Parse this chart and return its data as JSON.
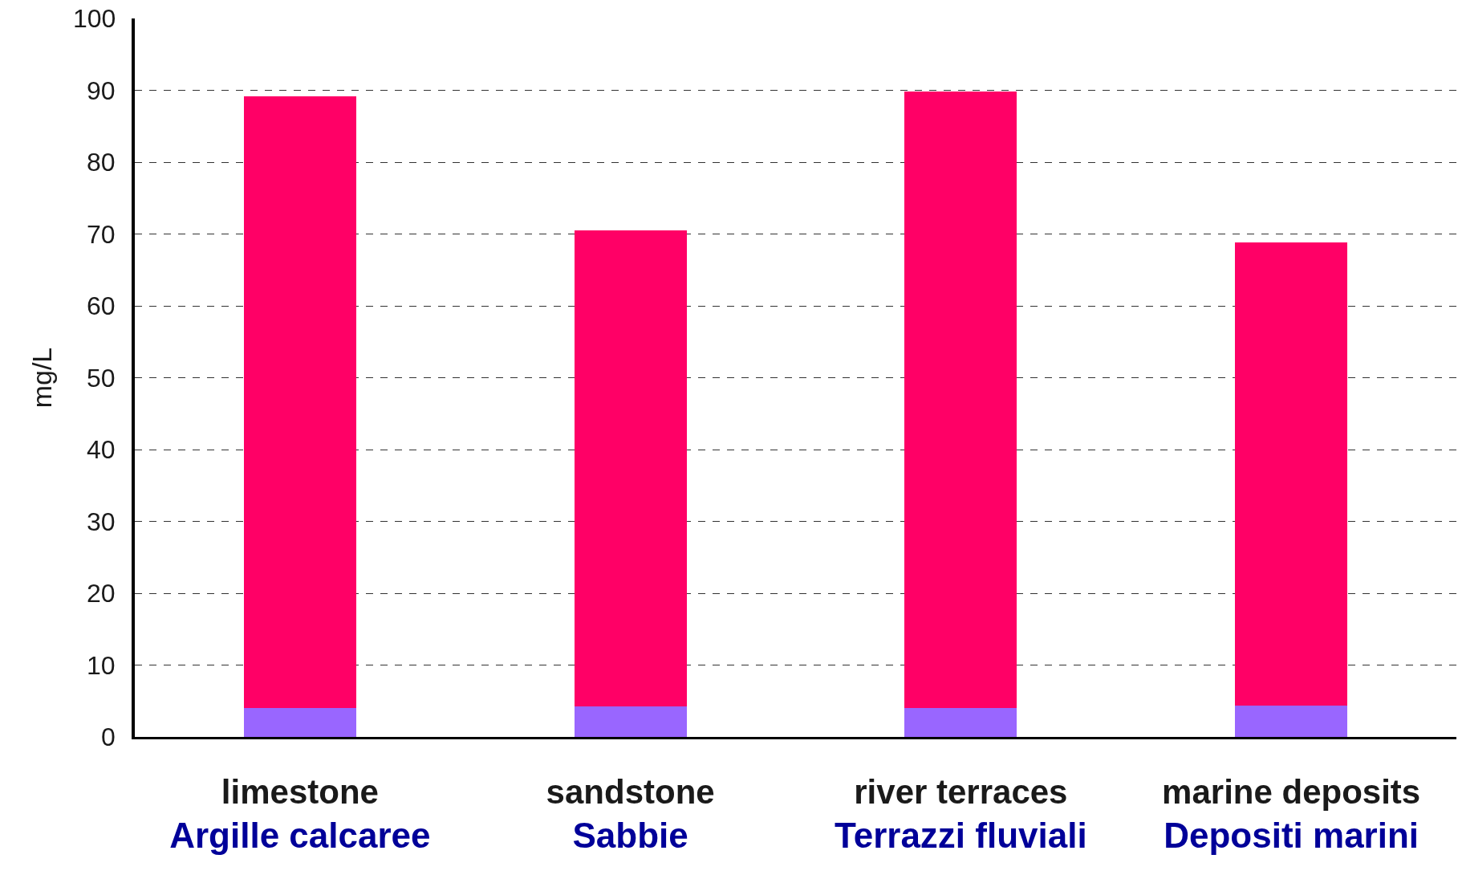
{
  "chart_data": {
    "type": "bar",
    "stacked": true,
    "ylabel": "mg/L",
    "categories": [
      "limestone\nArgille calcaree",
      "sandstone\nSabbie",
      "river terraces\nTerrazzi fluviali",
      "marine deposits\nDepositi marini"
    ],
    "series": [
      {
        "color": "#9966ff",
        "values": [
          4.0,
          4.2,
          4.0,
          4.4
        ]
      },
      {
        "color": "#ff0066",
        "values": [
          85.2,
          66.3,
          85.8,
          64.4
        ]
      }
    ],
    "ylim": [
      0,
      100
    ],
    "yticks": [
      0,
      10,
      20,
      30,
      40,
      50,
      60,
      70,
      80,
      90,
      100
    ],
    "grid": "y"
  }
}
